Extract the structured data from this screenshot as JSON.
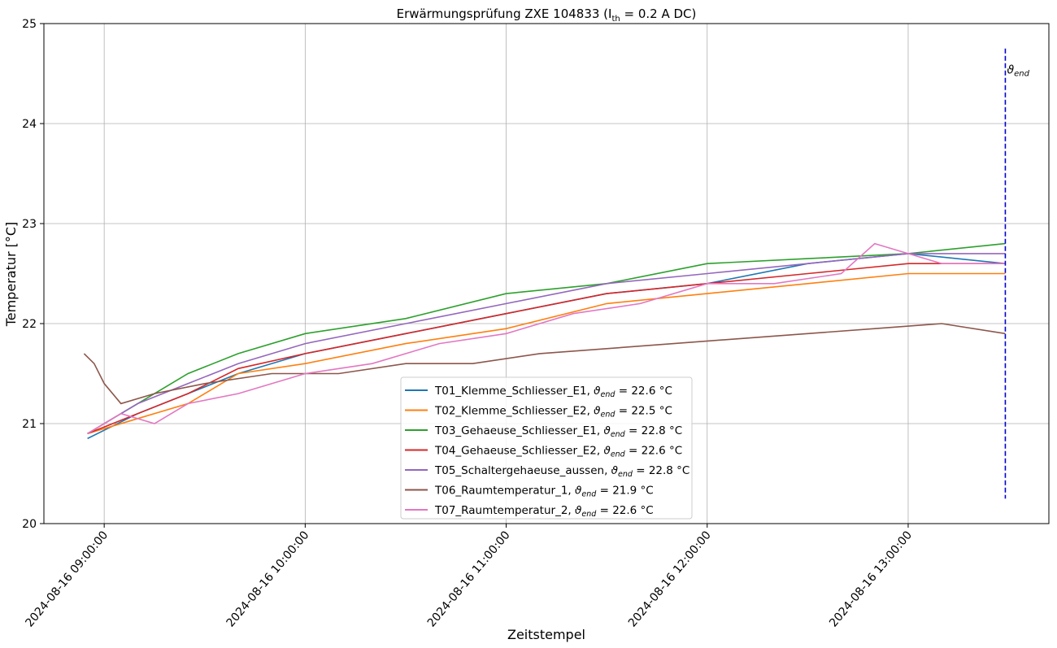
{
  "chart_data": {
    "type": "line",
    "title": "Erwärmungsprüfung ZXE 104833 (I",
    "title_sub": "th",
    "title_suffix": " = 0.2 A DC)",
    "xlabel": "Zeitstempel",
    "ylabel": "Temperatur [°C]",
    "x_ticks": [
      "2024-08-16 09:00:00",
      "2024-08-16 10:00:00",
      "2024-08-16 11:00:00",
      "2024-08-16 12:00:00",
      "2024-08-16 13:00:00"
    ],
    "y_ticks": [
      "20",
      "21",
      "22",
      "23",
      "24",
      "25"
    ],
    "ylim": [
      20,
      25
    ],
    "xlim": [
      "2024-08-16 08:42:00",
      "2024-08-16 13:42:00"
    ],
    "grid": true,
    "legend_position": "lower center",
    "end_marker": {
      "time": "2024-08-16 13:29:00",
      "label": "ϑ",
      "label_sub": "end",
      "color": "#0000cc"
    },
    "series": [
      {
        "name": "T01_Klemme_Schliesser_E1, ",
        "end_value": "22.6",
        "color": "#1f77b4",
        "x": [
          "2024-08-16 08:55:00",
          "2024-08-16 09:10:00",
          "2024-08-16 09:25:00",
          "2024-08-16 09:40:00",
          "2024-08-16 10:00:00",
          "2024-08-16 10:30:00",
          "2024-08-16 11:00:00",
          "2024-08-16 11:30:00",
          "2024-08-16 12:00:00",
          "2024-08-16 12:30:00",
          "2024-08-16 13:00:00",
          "2024-08-16 13:29:00"
        ],
        "values": [
          20.85,
          21.1,
          21.3,
          21.5,
          21.7,
          21.9,
          22.1,
          22.3,
          22.4,
          22.6,
          22.7,
          22.6
        ]
      },
      {
        "name": "T02_Klemme_Schliesser_E2, ",
        "end_value": "22.5",
        "color": "#ff7f0e",
        "x": [
          "2024-08-16 08:55:00",
          "2024-08-16 09:10:00",
          "2024-08-16 09:25:00",
          "2024-08-16 09:40:00",
          "2024-08-16 10:00:00",
          "2024-08-16 10:30:00",
          "2024-08-16 11:00:00",
          "2024-08-16 11:30:00",
          "2024-08-16 12:00:00",
          "2024-08-16 12:30:00",
          "2024-08-16 13:00:00",
          "2024-08-16 13:29:00"
        ],
        "values": [
          20.9,
          21.05,
          21.2,
          21.5,
          21.6,
          21.8,
          21.95,
          22.2,
          22.3,
          22.4,
          22.5,
          22.5
        ]
      },
      {
        "name": "T03_Gehaeuse_Schliesser_E1, ",
        "end_value": "22.8",
        "color": "#2ca02c",
        "x": [
          "2024-08-16 08:55:00",
          "2024-08-16 09:10:00",
          "2024-08-16 09:25:00",
          "2024-08-16 09:40:00",
          "2024-08-16 10:00:00",
          "2024-08-16 10:30:00",
          "2024-08-16 11:00:00",
          "2024-08-16 11:30:00",
          "2024-08-16 12:00:00",
          "2024-08-16 12:30:00",
          "2024-08-16 13:00:00",
          "2024-08-16 13:29:00"
        ],
        "values": [
          20.9,
          21.2,
          21.5,
          21.7,
          21.9,
          22.05,
          22.3,
          22.4,
          22.6,
          22.65,
          22.7,
          22.8
        ]
      },
      {
        "name": "T04_Gehaeuse_Schliesser_E2, ",
        "end_value": "22.6",
        "color": "#d62728",
        "x": [
          "2024-08-16 08:55:00",
          "2024-08-16 09:10:00",
          "2024-08-16 09:25:00",
          "2024-08-16 09:40:00",
          "2024-08-16 10:00:00",
          "2024-08-16 10:30:00",
          "2024-08-16 11:00:00",
          "2024-08-16 11:30:00",
          "2024-08-16 12:00:00",
          "2024-08-16 12:30:00",
          "2024-08-16 13:00:00",
          "2024-08-16 13:29:00"
        ],
        "values": [
          20.9,
          21.1,
          21.3,
          21.55,
          21.7,
          21.9,
          22.1,
          22.3,
          22.4,
          22.5,
          22.6,
          22.6
        ]
      },
      {
        "name": "T05_Schaltergehaeuse_aussen, ",
        "end_value": "22.8",
        "color": "#9467bd",
        "x": [
          "2024-08-16 08:55:00",
          "2024-08-16 09:10:00",
          "2024-08-16 09:25:00",
          "2024-08-16 09:40:00",
          "2024-08-16 10:00:00",
          "2024-08-16 10:30:00",
          "2024-08-16 11:00:00",
          "2024-08-16 11:30:00",
          "2024-08-16 12:00:00",
          "2024-08-16 12:30:00",
          "2024-08-16 13:00:00",
          "2024-08-16 13:29:00"
        ],
        "values": [
          20.9,
          21.2,
          21.4,
          21.6,
          21.8,
          22.0,
          22.2,
          22.4,
          22.5,
          22.6,
          22.7,
          22.7
        ]
      },
      {
        "name": "T06_Raumtemperatur_1, ",
        "end_value": "21.9",
        "color": "#8c564b",
        "x": [
          "2024-08-16 08:54:00",
          "2024-08-16 08:57:00",
          "2024-08-16 09:00:00",
          "2024-08-16 09:05:00",
          "2024-08-16 09:15:00",
          "2024-08-16 09:30:00",
          "2024-08-16 09:50:00",
          "2024-08-16 10:10:00",
          "2024-08-16 10:30:00",
          "2024-08-16 10:50:00",
          "2024-08-16 11:10:00",
          "2024-08-16 11:30:00",
          "2024-08-16 11:50:00",
          "2024-08-16 12:10:00",
          "2024-08-16 12:30:00",
          "2024-08-16 12:50:00",
          "2024-08-16 13:10:00",
          "2024-08-16 13:29:00"
        ],
        "values": [
          21.7,
          21.6,
          21.4,
          21.2,
          21.3,
          21.4,
          21.5,
          21.5,
          21.6,
          21.6,
          21.7,
          21.75,
          21.8,
          21.85,
          21.9,
          21.95,
          22.0,
          21.9
        ]
      },
      {
        "name": "T07_Raumtemperatur_2, ",
        "end_value": "22.6",
        "color": "#e377c2",
        "x": [
          "2024-08-16 08:55:00",
          "2024-08-16 09:05:00",
          "2024-08-16 09:15:00",
          "2024-08-16 09:25:00",
          "2024-08-16 09:40:00",
          "2024-08-16 10:00:00",
          "2024-08-16 10:20:00",
          "2024-08-16 10:40:00",
          "2024-08-16 11:00:00",
          "2024-08-16 11:20:00",
          "2024-08-16 11:40:00",
          "2024-08-16 12:00:00",
          "2024-08-16 12:20:00",
          "2024-08-16 12:40:00",
          "2024-08-16 12:50:00",
          "2024-08-16 13:10:00",
          "2024-08-16 13:29:00"
        ],
        "values": [
          20.9,
          21.1,
          21.0,
          21.2,
          21.3,
          21.5,
          21.6,
          21.8,
          21.9,
          22.1,
          22.2,
          22.4,
          22.4,
          22.5,
          22.8,
          22.6,
          22.6
        ]
      }
    ]
  }
}
